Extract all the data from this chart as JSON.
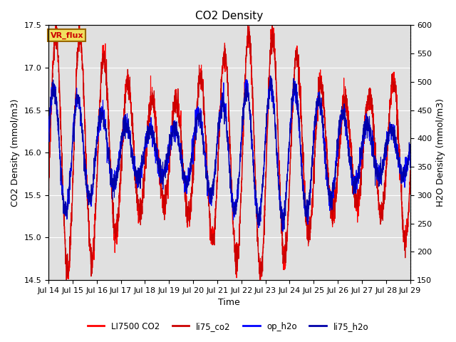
{
  "title": "CO2 Density",
  "xlabel": "Time",
  "ylabel_left": "CO2 Density (mmol/m3)",
  "ylabel_right": "H2O Density (mmol/m3)",
  "ylim_left": [
    14.5,
    17.5
  ],
  "ylim_right": [
    150,
    600
  ],
  "xtick_labels": [
    "Jul 14",
    "Jul 15",
    "Jul 16",
    "Jul 17",
    "Jul 18",
    "Jul 19",
    "Jul 20",
    "Jul 21",
    "Jul 22",
    "Jul 23",
    "Jul 24",
    "Jul 25",
    "Jul 26",
    "Jul 27",
    "Jul 28",
    "Jul 29"
  ],
  "background_color": "#e0e0e0",
  "figure_background": "#ffffff",
  "label_box_text": "VR_flux",
  "label_box_facecolor": "#f0e060",
  "label_box_edgecolor": "#996600",
  "legend_entries": [
    "LI7500 CO2",
    "li75_co2",
    "op_h2o",
    "li75_h2o"
  ],
  "co2_color": "#ff0000",
  "h2o_color": "#0000ff",
  "title_fontsize": 11,
  "axis_label_fontsize": 9,
  "tick_fontsize": 8
}
